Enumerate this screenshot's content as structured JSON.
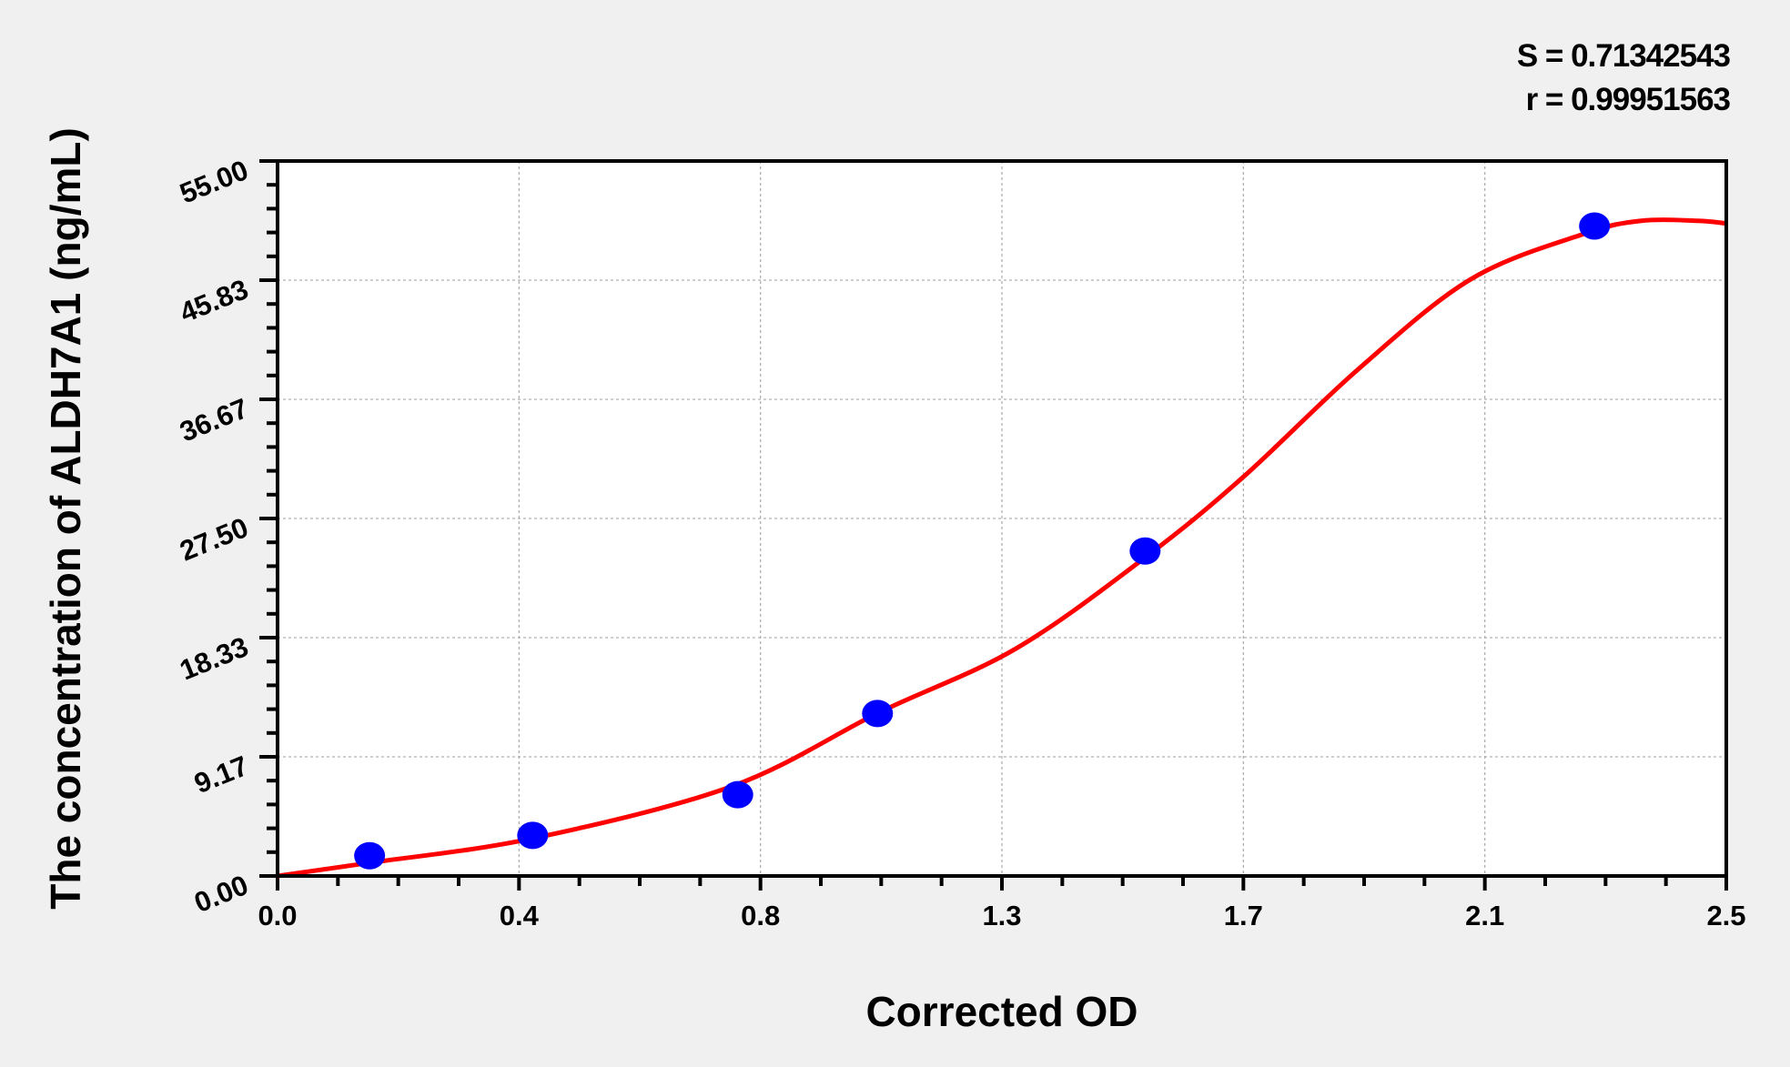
{
  "chart_data": {
    "type": "scatter",
    "xlabel": "Corrected OD",
    "ylabel": "The concentration of ALDH7A1 (ng/mL)",
    "xlim": [
      0,
      2.55
    ],
    "ylim": [
      0,
      55
    ],
    "x_tick_labels": [
      "0.0",
      "0.4",
      "0.8",
      "1.3",
      "1.7",
      "2.1",
      "2.5"
    ],
    "y_tick_labels": [
      "0.00",
      "9.17",
      "18.33",
      "27.50",
      "36.67",
      "45.83",
      "55.00"
    ],
    "grid": true,
    "stats": {
      "s": "S = 0.71342543",
      "r": "r = 0.99951563"
    },
    "series": [
      {
        "kind": "points",
        "color": "#0000ff",
        "x": [
          0.162,
          0.449,
          0.81,
          1.056,
          1.527,
          2.318
        ],
        "y": [
          1.56,
          3.125,
          6.25,
          12.5,
          25,
          50
        ]
      },
      {
        "kind": "fit-curve",
        "color": "#ff0000",
        "x": [
          0,
          0.16,
          0.45,
          0.8,
          1.06,
          1.3,
          1.53,
          1.7,
          1.9,
          2.1,
          2.3,
          2.4,
          2.5,
          2.55
        ],
        "y": [
          0,
          1.0,
          2.9,
          6.9,
          12.6,
          17.5,
          24.6,
          30.7,
          38.9,
          45.9,
          49.4,
          50.4,
          50.4,
          50.2
        ]
      }
    ]
  }
}
